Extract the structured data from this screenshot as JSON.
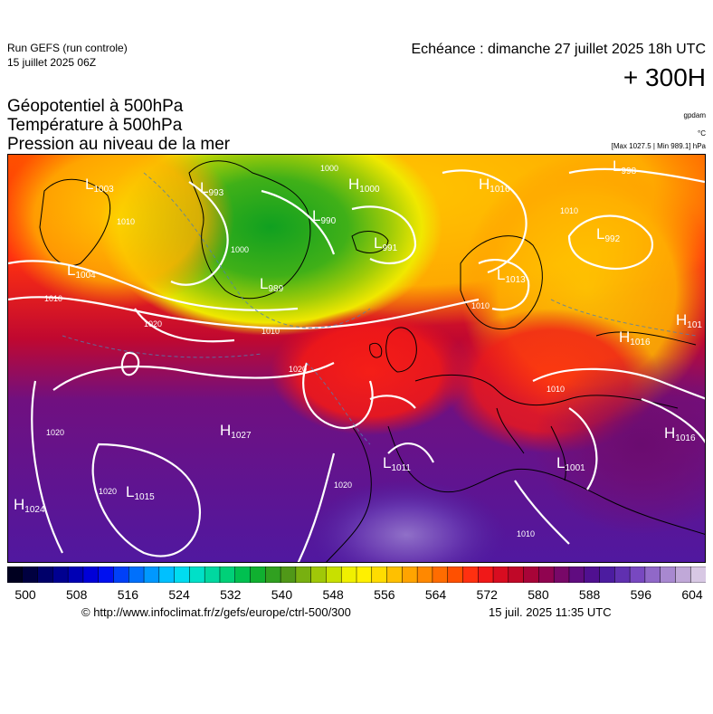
{
  "header": {
    "run_title": "Run GEFS (run controle)",
    "run_date": "15 juillet 2025 06Z",
    "echeance": "Echéance : dimanche 27 juillet 2025 18h UTC",
    "horizon": "+ 300H"
  },
  "parameters": {
    "line1": "Géopotentiel à 500hPa",
    "line2": "Température à 500hPa",
    "line3": "Pression au niveau de la mer",
    "unit_geopot": "gpdam",
    "unit_temp": "°C",
    "maxmin": "[Max 1027.5 | Min 989.1] hPa"
  },
  "pressure_centers": [
    {
      "type": "L",
      "value": "1003"
    },
    {
      "type": "L",
      "value": "993"
    },
    {
      "type": "H",
      "value": "1000"
    },
    {
      "type": "H",
      "value": "1016"
    },
    {
      "type": "L",
      "value": "998"
    },
    {
      "type": "L",
      "value": "990"
    },
    {
      "type": "L",
      "value": "991"
    },
    {
      "type": "L",
      "value": "992"
    },
    {
      "type": "L",
      "value": "1004"
    },
    {
      "type": "L",
      "value": "989"
    },
    {
      "type": "L",
      "value": "1013"
    },
    {
      "type": "H",
      "value": "1016"
    },
    {
      "type": "H",
      "value": "101"
    },
    {
      "type": "H",
      "value": "1027"
    },
    {
      "type": "L",
      "value": "1011"
    },
    {
      "type": "L",
      "value": "1001"
    },
    {
      "type": "H",
      "value": "1016"
    },
    {
      "type": "L",
      "value": "1015"
    },
    {
      "type": "H",
      "value": "1024"
    }
  ],
  "isobar_labels": [
    "1000",
    "1010",
    "1010",
    "1010",
    "1010",
    "1020",
    "1020",
    "1020",
    "1020",
    "1020",
    "1010",
    "1010",
    "1000",
    "1010"
  ],
  "colorbar": {
    "colors": [
      "#000020",
      "#000040",
      "#00006a",
      "#000090",
      "#0000b4",
      "#0000d8",
      "#0010f0",
      "#0040f8",
      "#0070fc",
      "#0098ff",
      "#00c0ff",
      "#00dcf0",
      "#00e0c8",
      "#00d8a0",
      "#00d078",
      "#00c050",
      "#10b030",
      "#30a020",
      "#509818",
      "#78b010",
      "#a0c808",
      "#c8e000",
      "#f0f000",
      "#fff000",
      "#ffdc00",
      "#ffc000",
      "#ffa400",
      "#ff8800",
      "#ff6c00",
      "#ff5000",
      "#ff3010",
      "#f01818",
      "#d80c20",
      "#c00828",
      "#a80438",
      "#900450",
      "#780868",
      "#600c80",
      "#501090",
      "#4c1ca0",
      "#6030b0",
      "#7848c0",
      "#9068c8",
      "#a888d0",
      "#c0a8d8",
      "#d8c8e4"
    ],
    "ticks": [
      "500",
      "508",
      "516",
      "524",
      "532",
      "540",
      "548",
      "556",
      "564",
      "572",
      "580",
      "588",
      "596",
      "604"
    ]
  },
  "footer": {
    "url": "© http://www.infoclimat.fr/z/gefs/europe/ctrl-500/300",
    "timestamp": "15 juil. 2025 11:35 UTC"
  }
}
